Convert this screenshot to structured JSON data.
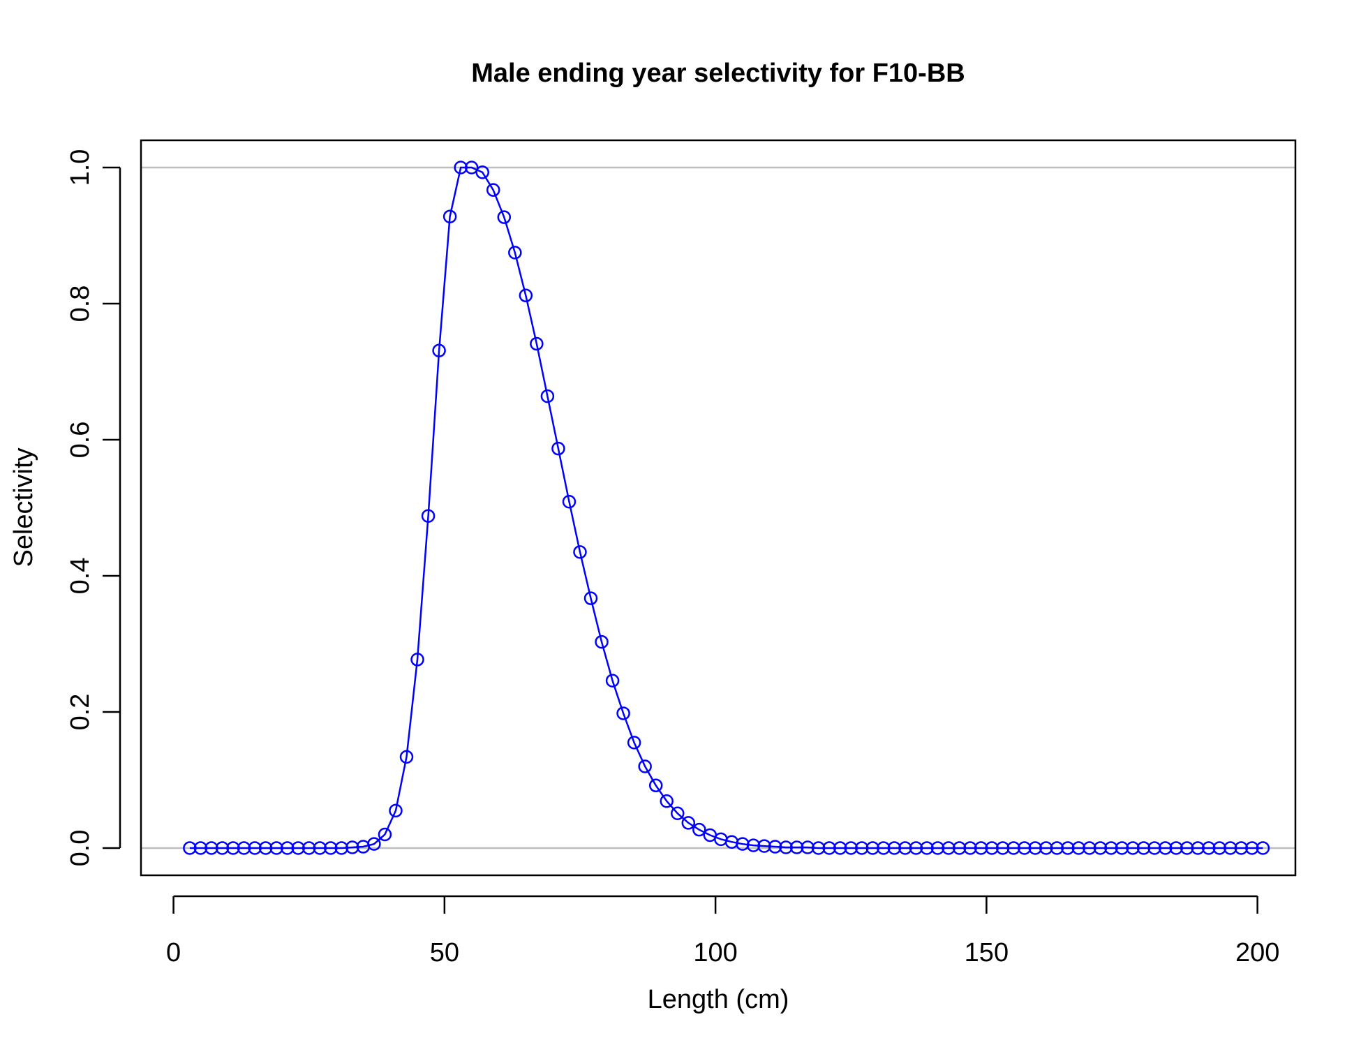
{
  "chart_data": {
    "type": "line",
    "title": "Male ending year selectivity for F10-BB",
    "xlabel": "Length (cm)",
    "ylabel": "Selectivity",
    "xlim": [
      -6,
      207
    ],
    "ylim": [
      -0.04,
      1.04
    ],
    "x_ticks": [
      0,
      50,
      100,
      150,
      200
    ],
    "y_ticks": [
      0.0,
      0.2,
      0.4,
      0.6,
      0.8,
      1.0
    ],
    "x_tick_labels": [
      "0",
      "50",
      "100",
      "150",
      "200"
    ],
    "y_tick_labels": [
      "0.0",
      "0.2",
      "0.4",
      "0.6",
      "0.8",
      "1.0"
    ],
    "reference_lines": [
      0,
      1
    ],
    "grid": false,
    "colors": {
      "series": "#0000ff",
      "reference_line": "#bebebe",
      "axes": "#000000"
    },
    "series": [
      {
        "x": [
          3,
          5,
          7,
          9,
          11,
          13,
          15,
          17,
          19,
          21,
          23,
          25,
          27,
          29,
          31,
          33,
          35,
          37,
          39,
          41,
          43,
          45,
          47,
          49,
          51,
          53,
          55,
          57,
          59,
          61,
          63,
          65,
          67,
          69,
          71,
          73,
          75,
          77,
          79,
          81,
          83,
          85,
          87,
          89,
          91,
          93,
          95,
          97,
          99,
          101,
          103,
          105,
          107,
          109,
          111,
          113,
          115,
          117,
          119,
          121,
          123,
          125,
          127,
          129,
          131,
          133,
          135,
          137,
          139,
          141,
          143,
          145,
          147,
          149,
          151,
          153,
          155,
          157,
          159,
          161,
          163,
          165,
          167,
          169,
          171,
          173,
          175,
          177,
          179,
          181,
          183,
          185,
          187,
          189,
          191,
          193,
          195,
          197,
          199,
          201
        ],
        "values": [
          0,
          0,
          0,
          0,
          0,
          0,
          0,
          0,
          0,
          0,
          0,
          0,
          0,
          0,
          0,
          0.001,
          0.002,
          0.006,
          0.02,
          0.055,
          0.134,
          0.277,
          0.488,
          0.731,
          0.928,
          1.0,
          1.0,
          0.993,
          0.967,
          0.927,
          0.875,
          0.812,
          0.741,
          0.664,
          0.587,
          0.509,
          0.435,
          0.367,
          0.303,
          0.246,
          0.198,
          0.155,
          0.12,
          0.092,
          0.069,
          0.051,
          0.037,
          0.027,
          0.019,
          0.013,
          0.009,
          0.006,
          0.004,
          0.003,
          0.002,
          0.001,
          0.001,
          0.001,
          0,
          0,
          0,
          0,
          0,
          0,
          0,
          0,
          0,
          0,
          0,
          0,
          0,
          0,
          0,
          0,
          0,
          0,
          0,
          0,
          0,
          0,
          0,
          0,
          0,
          0,
          0,
          0,
          0,
          0,
          0,
          0,
          0,
          0,
          0,
          0,
          0,
          0,
          0,
          0,
          0,
          0
        ]
      }
    ]
  }
}
